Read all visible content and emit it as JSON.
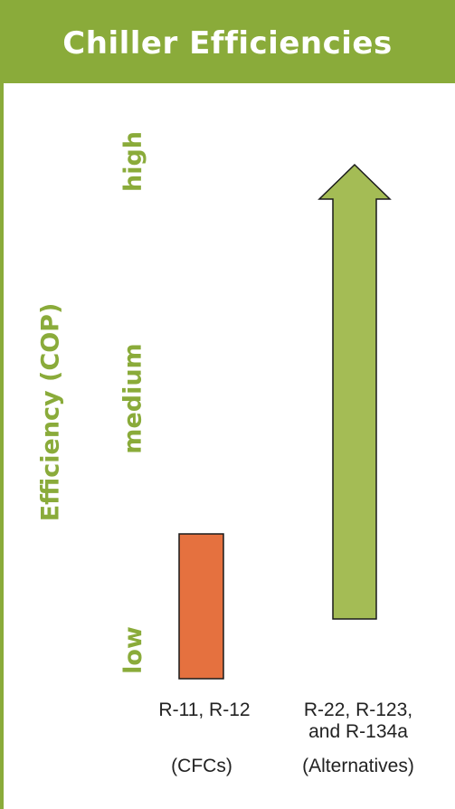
{
  "chart_data": {
    "type": "bar",
    "title": "Chiller Efficiencies",
    "ylabel": "Efficiency (COP)",
    "ytick_labels": [
      "low",
      "medium",
      "high"
    ],
    "categories": [
      {
        "label": "R-11, R-12",
        "sublabel": "(CFCs)",
        "value": 1,
        "shape": "bar",
        "color": "#e5713f"
      },
      {
        "label": "R-22, R-123, and R-134a",
        "sublabel": "(Alternatives)",
        "value": 3,
        "shape": "up-arrow",
        "color": "#a4bc55"
      }
    ],
    "ylim": [
      0,
      3
    ],
    "grid": false,
    "legend": "none"
  },
  "colors": {
    "accent": "#8aab3a",
    "cfc_bar": "#e5713f",
    "alternative_arrow": "#a4bc55"
  }
}
